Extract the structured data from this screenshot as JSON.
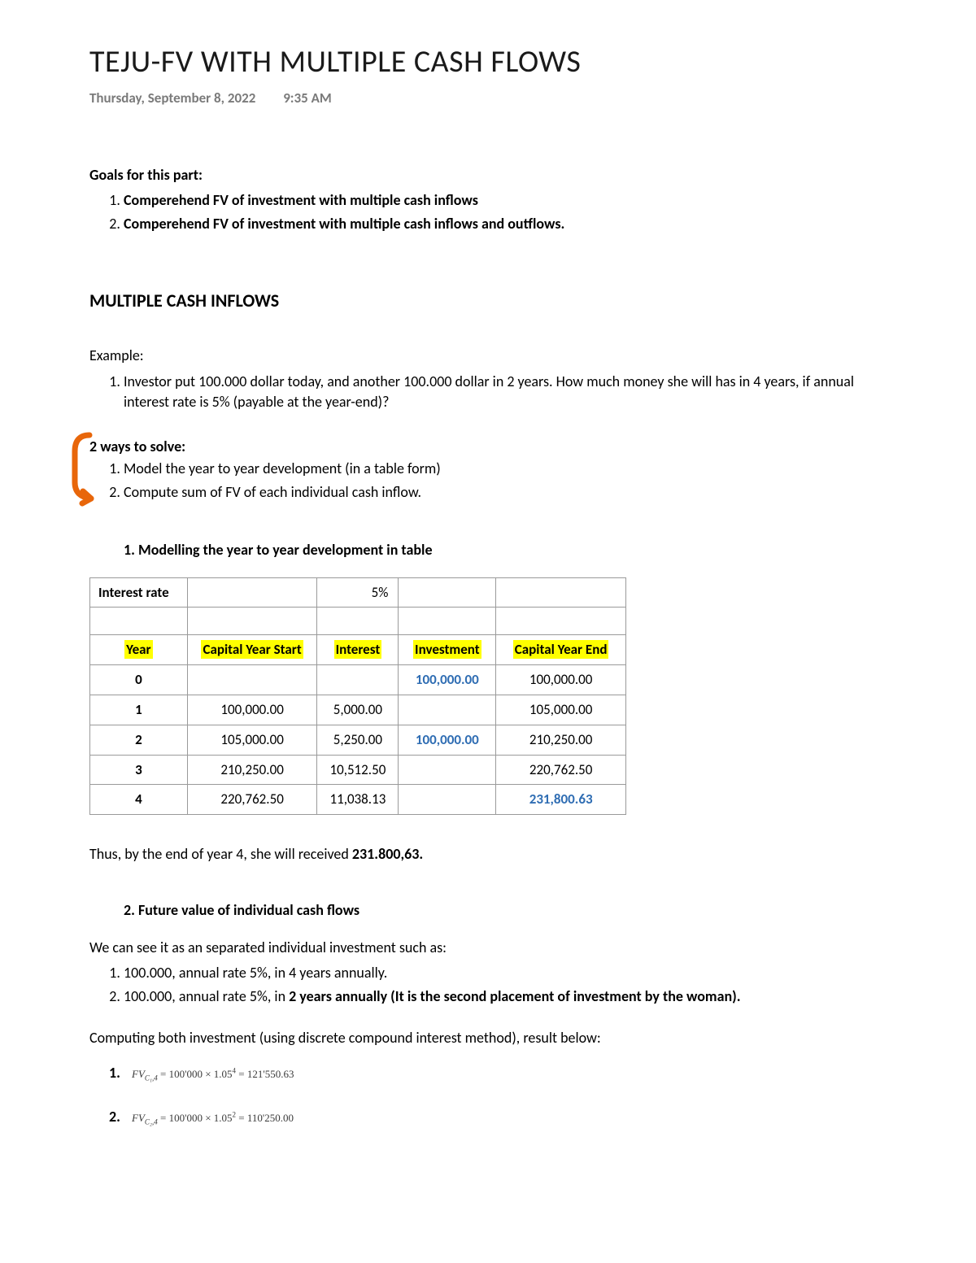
{
  "title": "TEJU-FV WITH MULTIPLE CASH FLOWS",
  "date": "Thursday, September 8, 2022",
  "time": "9:35 AM",
  "goals_label": "Goals for this part:",
  "goals": [
    "Comperehend FV of investment with multiple cash inflows",
    "Comperehend FV of investment with multiple cash inflows and outflows."
  ],
  "section_heading": "MULTIPLE CASH INFLOWS",
  "example_label": "Example:",
  "example_text": "Investor put 100.000 dollar today, and another 100.000 dollar in 2 years. How much money she will has in 4 years, if annual interest rate is 5% (payable at the year-end)?",
  "ways_title": "2 ways to solve:",
  "ways": [
    "Model the year to year development (in a table form)",
    "Compute sum of FV of each individual cash inflow."
  ],
  "sub1_heading": "1.   Modelling the year to year development in table",
  "table": {
    "irate_label": "Interest rate",
    "irate_value": "5%",
    "headers": [
      "Year",
      "Capital Year Start",
      "Interest",
      "Investment",
      "Capital Year End"
    ],
    "rows": [
      {
        "year": "0",
        "cys": "",
        "int": "",
        "inv": "100,000.00",
        "inv_blue": true,
        "cye": "100,000.00",
        "cye_blue": false
      },
      {
        "year": "1",
        "cys": "100,000.00",
        "int": "5,000.00",
        "inv": "",
        "inv_blue": false,
        "cye": "105,000.00",
        "cye_blue": false
      },
      {
        "year": "2",
        "cys": "105,000.00",
        "int": "5,250.00",
        "inv": "100,000.00",
        "inv_blue": true,
        "cye": "210,250.00",
        "cye_blue": false
      },
      {
        "year": "3",
        "cys": "210,250.00",
        "int": "10,512.50",
        "inv": "",
        "inv_blue": false,
        "cye": "220,762.50",
        "cye_blue": false
      },
      {
        "year": "4",
        "cys": "220,762.50",
        "int": "11,038.13",
        "inv": "",
        "inv_blue": false,
        "cye": "231,800.63",
        "cye_blue": true
      }
    ]
  },
  "conclusion": "Thus, by the end of year 4, she will received 231.800,63.",
  "sub2_heading": "2.   Future value of individual cash flows",
  "sub2_intro": "We can see it as an separated individual investment such as:",
  "sub2_items": [
    {
      "text": "100.000, annual rate 5%, in 4 years annually.",
      "bold": false
    },
    {
      "text": "100.000, annual rate 5%, in 2 years annually (It is the second placement of investment by the woman).",
      "bold": true,
      "prefix": "100.000, annual rate 5%, in "
    }
  ],
  "sub2_item1": "100.000, annual rate 5%, in 4 years annually.",
  "sub2_item2_a": "100.000, annual rate 5%, in ",
  "sub2_item2_b": "2 years annually (It is the second placement of investment by the woman).",
  "compute_text": "Computing both investment (using discrete compound interest method), result below:",
  "formula1": {
    "fv": "FV",
    "sub": "C₁,4",
    "eq": " = 100'000 × 1.05",
    "exp": "4",
    "res": " = 121'550.63"
  },
  "formula2": {
    "fv": "FV",
    "sub": "C₂,4",
    "eq": " = 100'000 × 1.05",
    "exp": "2",
    "res": " = 110'250.00"
  },
  "annotation_color": "#e8660a"
}
